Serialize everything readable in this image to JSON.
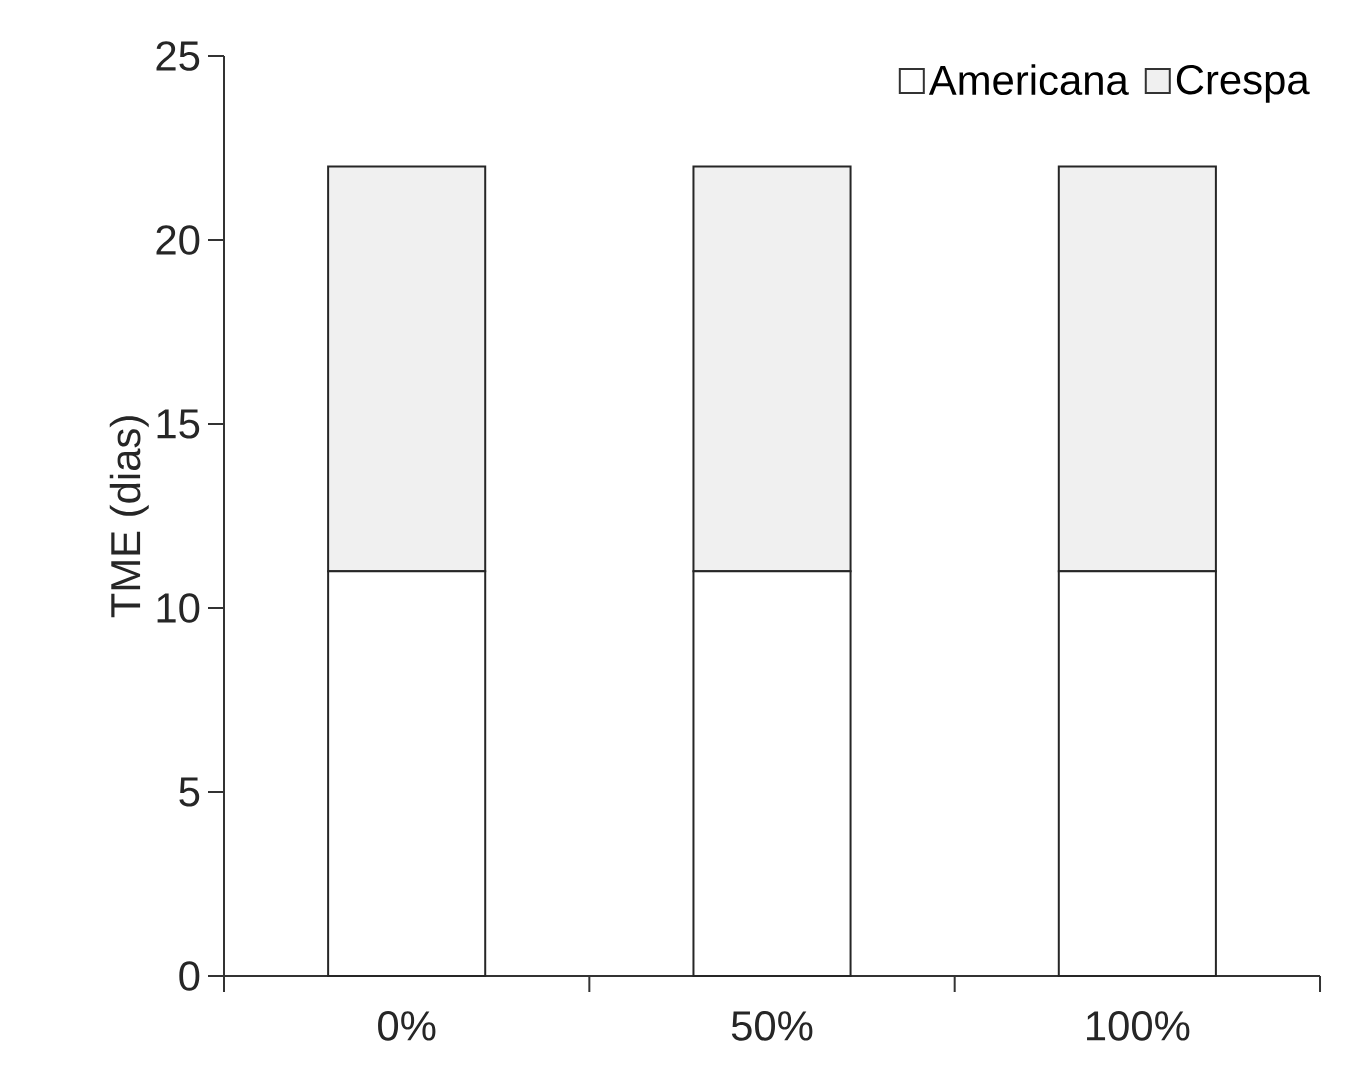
{
  "chart_data": {
    "type": "bar",
    "stacked": true,
    "ylabel": "TME (dias)",
    "categories": [
      "0%",
      "50%",
      "100%"
    ],
    "series": [
      {
        "name": "Americana",
        "color": "#ffffff",
        "values": [
          11,
          11,
          11
        ]
      },
      {
        "name": "Crespa",
        "color": "#f0f0f0",
        "values": [
          11,
          11,
          11
        ]
      }
    ],
    "ylim": [
      0,
      25
    ],
    "yticks": [
      0,
      5,
      10,
      15,
      20,
      25
    ],
    "grid": false,
    "legend": "top right"
  }
}
